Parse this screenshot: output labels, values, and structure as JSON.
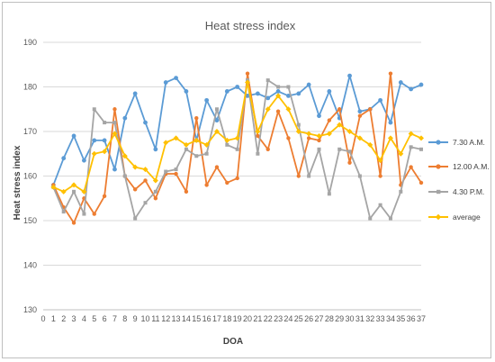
{
  "chart_data": {
    "type": "line",
    "title": "Heat stress index",
    "xlabel": "DOA",
    "ylabel": "Heat stress index",
    "ylim": [
      130,
      190
    ],
    "yticks": [
      130,
      140,
      150,
      160,
      170,
      180,
      190
    ],
    "xlim": [
      0,
      37
    ],
    "x": [
      1,
      2,
      3,
      4,
      5,
      6,
      7,
      8,
      9,
      10,
      11,
      12,
      13,
      14,
      15,
      16,
      17,
      18,
      19,
      20,
      21,
      22,
      23,
      24,
      25,
      26,
      27,
      28,
      29,
      30,
      31,
      32,
      33,
      34,
      35,
      36,
      37
    ],
    "grid": "horizontal",
    "legend": "right",
    "series": [
      {
        "name": "7.30 A.M.",
        "color": "#5b9bd5",
        "values": [
          158,
          164,
          169,
          163.5,
          168,
          168,
          161.5,
          173,
          178.5,
          172,
          166,
          181,
          182,
          179,
          168,
          177,
          172.5,
          179,
          180,
          178,
          178.5,
          177.5,
          179,
          178,
          178.5,
          180.5,
          173.5,
          179,
          173,
          182.5,
          174.5,
          175,
          177,
          172,
          181,
          179.5,
          180.5
        ]
      },
      {
        "name": "12.00 A.M.",
        "color": "#ed7d31",
        "values": [
          158,
          153,
          149.5,
          155,
          151.5,
          155.5,
          175,
          160,
          157,
          159,
          155,
          160.5,
          160.5,
          156.5,
          173,
          158,
          162,
          158.5,
          159.5,
          183,
          169,
          166,
          174.5,
          168.5,
          160,
          168.5,
          168,
          172.5,
          175,
          163,
          173.5,
          175,
          160,
          183,
          158,
          162,
          158.5
        ]
      },
      {
        "name": "4.30 P.M.",
        "color": "#a5a5a5",
        "values": [
          157.5,
          152,
          156.5,
          151.5,
          175,
          172,
          172,
          160,
          150.5,
          154,
          156.5,
          161,
          161.5,
          166,
          164.5,
          165,
          175,
          167,
          166,
          181.5,
          165,
          181.5,
          180,
          180,
          171.5,
          160,
          166,
          156,
          166,
          165.5,
          160,
          150.5,
          153.5,
          150.5,
          156.5,
          166.5,
          166
        ]
      },
      {
        "name": "average",
        "color": "#ffc000",
        "values": [
          157.5,
          156.5,
          158,
          156.5,
          165,
          165.5,
          169.5,
          164.5,
          162,
          161.5,
          159,
          167.5,
          168.5,
          167,
          168,
          167,
          170,
          168,
          168.5,
          181,
          170,
          175,
          178,
          175,
          170,
          169.5,
          169,
          169.5,
          171.5,
          170,
          168.5,
          167,
          163.5,
          168.5,
          165,
          169.5,
          168.5
        ]
      }
    ]
  }
}
